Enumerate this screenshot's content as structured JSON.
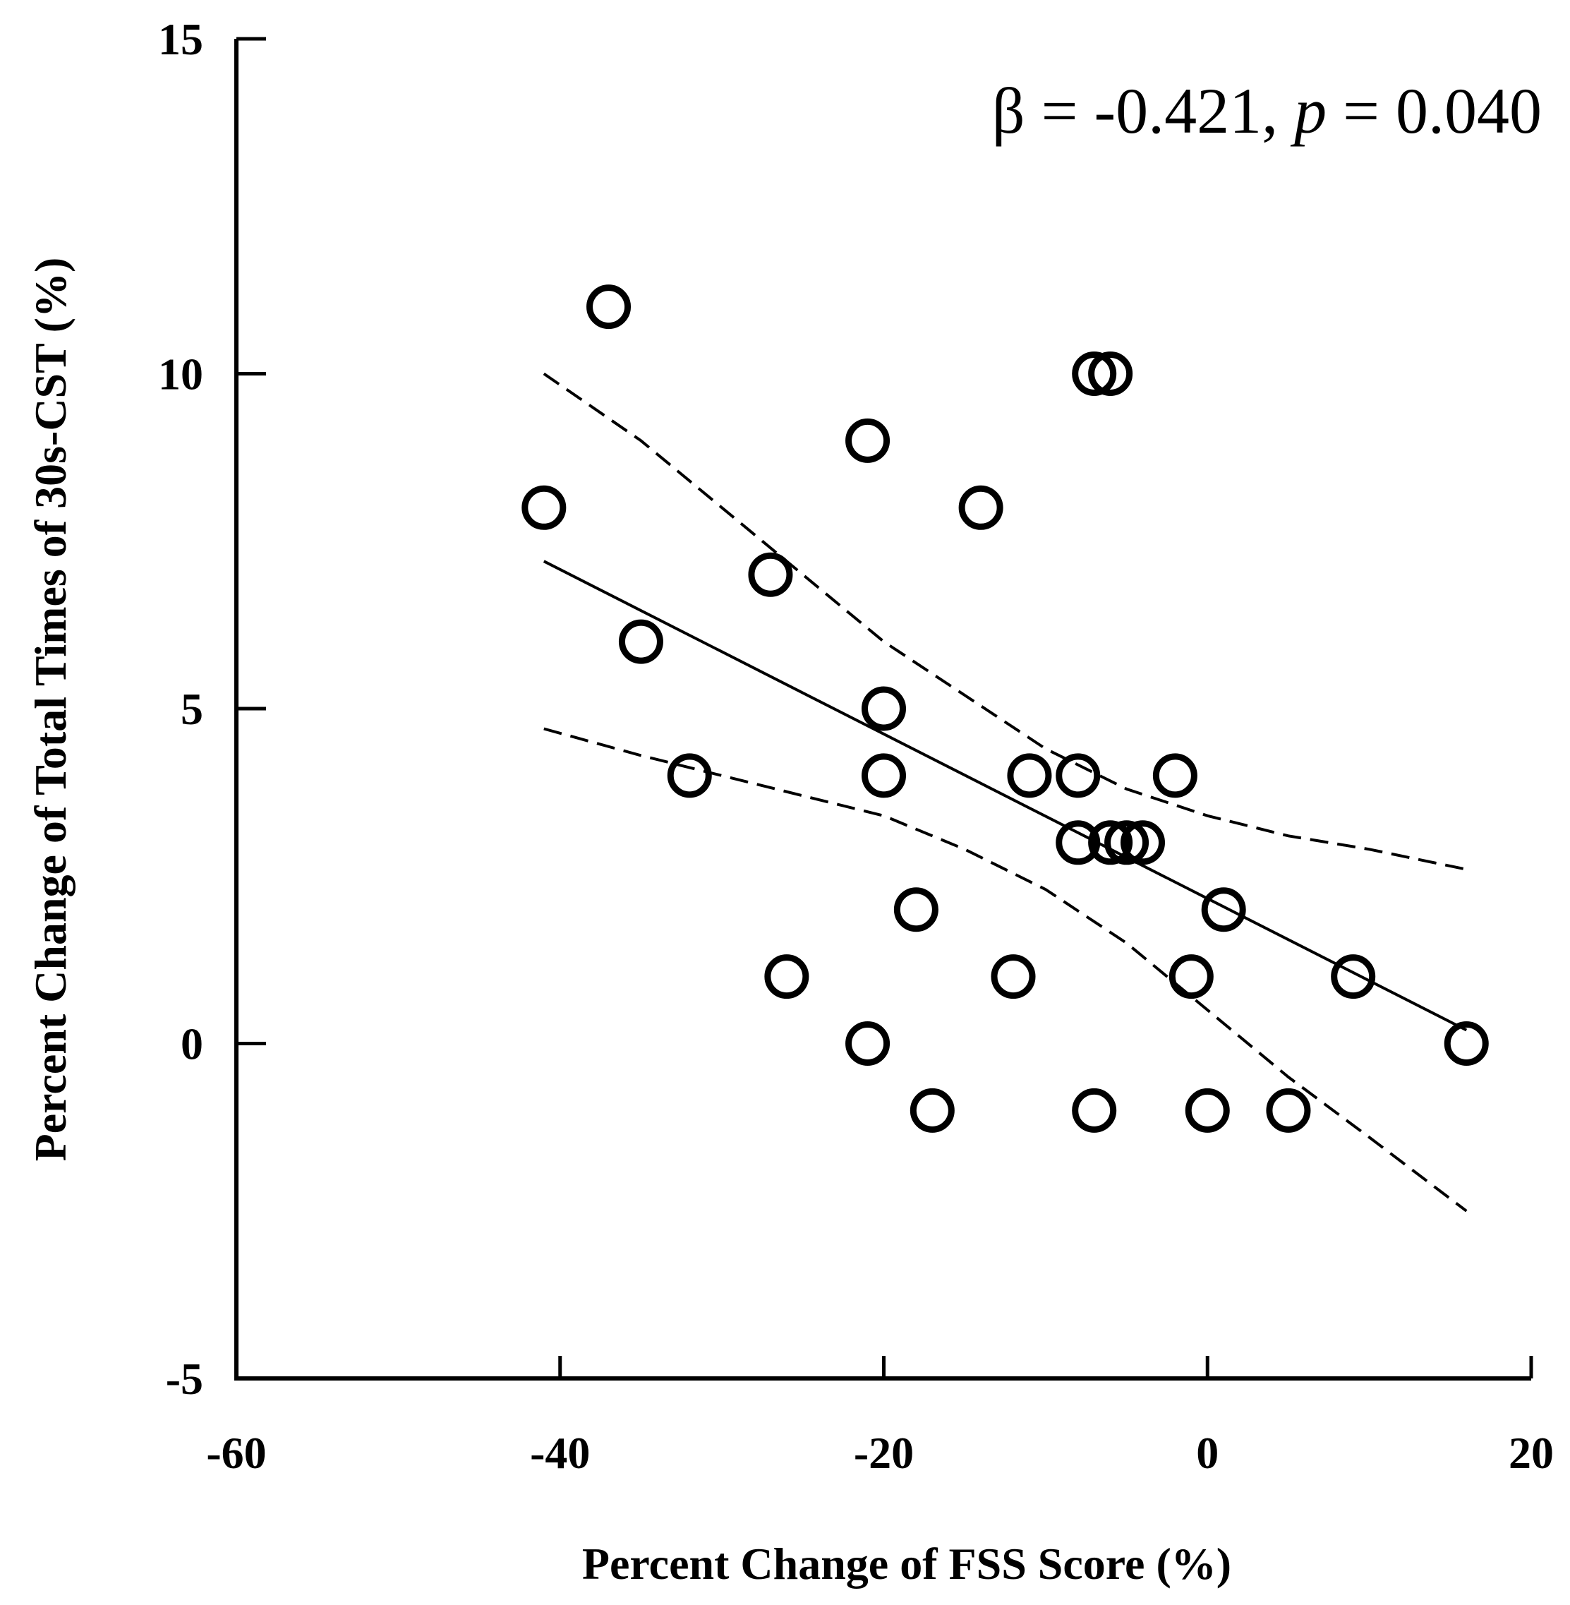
{
  "chart_data": {
    "type": "scatter",
    "xlabel": "Percent Change of FSS Score (%)",
    "ylabel": "Percent Change of  Total Times of 30s-CST (%)",
    "xlim": [
      -60,
      20
    ],
    "ylim": [
      -5,
      15
    ],
    "xticks": [
      -60,
      -40,
      -20,
      0,
      20
    ],
    "yticks": [
      -5,
      0,
      5,
      10,
      15
    ],
    "xtick_labels": [
      "-60",
      "-40",
      "-20",
      "0",
      "20"
    ],
    "ytick_labels": [
      "-5",
      "0",
      "5",
      "10",
      "15"
    ],
    "annotation": {
      "prefix": "β = -0.421, ",
      "p_symbol": "p",
      "suffix": " = 0.040"
    },
    "points": [
      {
        "x": -37,
        "y": 11
      },
      {
        "x": -7,
        "y": 10
      },
      {
        "x": -6,
        "y": 10
      },
      {
        "x": -21,
        "y": 9
      },
      {
        "x": -41,
        "y": 8
      },
      {
        "x": -14,
        "y": 8
      },
      {
        "x": -27,
        "y": 7
      },
      {
        "x": -35,
        "y": 6
      },
      {
        "x": -20,
        "y": 5
      },
      {
        "x": -32,
        "y": 4
      },
      {
        "x": -20,
        "y": 4
      },
      {
        "x": -11,
        "y": 4
      },
      {
        "x": -8,
        "y": 4
      },
      {
        "x": -2,
        "y": 4
      },
      {
        "x": -8,
        "y": 3
      },
      {
        "x": -6,
        "y": 3
      },
      {
        "x": -5,
        "y": 3
      },
      {
        "x": -4,
        "y": 3
      },
      {
        "x": -18,
        "y": 2
      },
      {
        "x": 1,
        "y": 2
      },
      {
        "x": -26,
        "y": 1
      },
      {
        "x": -12,
        "y": 1
      },
      {
        "x": -1,
        "y": 1
      },
      {
        "x": 9,
        "y": 1
      },
      {
        "x": -21,
        "y": 0
      },
      {
        "x": 16,
        "y": 0
      },
      {
        "x": -17,
        "y": -1
      },
      {
        "x": -7,
        "y": -1
      },
      {
        "x": 0,
        "y": -1
      },
      {
        "x": 5,
        "y": -1
      }
    ],
    "regression_line": {
      "x": [
        -41,
        16
      ],
      "y": [
        7.2,
        0.2
      ]
    },
    "ci_upper": {
      "x": [
        -41,
        -35,
        -30,
        -25,
        -20,
        -15,
        -10,
        -5,
        0,
        5,
        10,
        16
      ],
      "y": [
        10.0,
        9.0,
        8.0,
        7.0,
        6.0,
        5.2,
        4.4,
        3.8,
        3.4,
        3.1,
        2.9,
        2.6
      ]
    },
    "ci_lower": {
      "x": [
        -41,
        -35,
        -30,
        -25,
        -20,
        -15,
        -10,
        -5,
        0,
        5,
        10,
        16
      ],
      "y": [
        4.7,
        4.3,
        4.0,
        3.7,
        3.4,
        2.9,
        2.3,
        1.5,
        0.5,
        -0.5,
        -1.4,
        -2.5
      ]
    }
  }
}
